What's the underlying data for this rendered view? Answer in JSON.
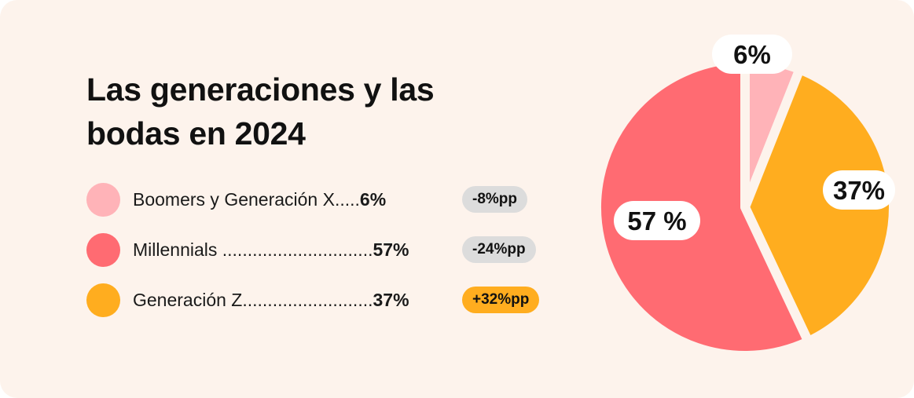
{
  "title_line1": "Las generaciones y las",
  "title_line2": "bodas en 2024",
  "chart_data": {
    "type": "pie",
    "title": "Las generaciones y las bodas en 2024",
    "start": "top",
    "direction": "clockwise",
    "slices": [
      {
        "name": "Boomers y Generación X",
        "value": 6,
        "label": "6%",
        "legend_dots": ".....",
        "legend_value": "6%",
        "change": "-8%pp",
        "color": "#ffb3b8",
        "badge_color": "#dcdcdc"
      },
      {
        "name": "Generación Z",
        "value": 37,
        "label": "37%",
        "legend_dots": "..........................",
        "legend_value": "37%",
        "change": "+32%pp",
        "color": "#ffad1f",
        "badge_color": "#ffad1f"
      },
      {
        "name": "Millennials",
        "value": 57,
        "label": "57 %",
        "legend_dots": " ..............................",
        "legend_value": "57%",
        "change": "-24%pp",
        "color": "#ff6b72",
        "badge_color": "#dcdcdc"
      }
    ],
    "legend_order": [
      0,
      2,
      1
    ]
  },
  "colors": {
    "background": "#fdf3ec",
    "text": "#111111"
  }
}
